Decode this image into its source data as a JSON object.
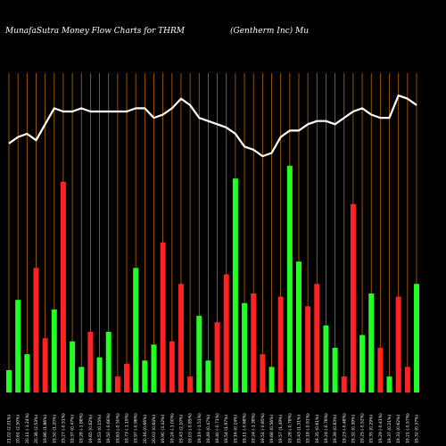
{
  "header": {
    "left": "MunafaSutra  Money Flow  Charts for THRM",
    "right": "(Gentherm Inc) Mu"
  },
  "chart_data": {
    "type": "bar",
    "title": "MunafaSutra  Money Flow  Charts for THRM",
    "subtitle": "(Gentherm Inc) Mu",
    "ylim": [
      0,
      100
    ],
    "categories": [
      "21.02 (2.01%)",
      "20.61 (2.50%)",
      "20.11 (-1.24%)",
      "20.36 (2.53%)",
      "19.86 (1.86%)",
      "19.50 (1.20%)",
      "19.27 (-0.51%)",
      "19.37 (0.47%)",
      "19.28 (-1.88%)",
      "19.65 (0.62%)",
      "19.53 (0.15%)",
      "19.50 (-0.66%)",
      "19.63 (-0.50%)",
      "19.73 (-1.19%)",
      "19.97 (-0.96%)",
      "20.16 (0.66%)",
      "20.03 (0.64%)",
      "19.90 (3.42%)",
      "19.24 (-1.00%)",
      "19.43 (2.10%)",
      "19.03 (-0.85%)",
      "19.19 (-1.51%)",
      "19.49 (0.47%)",
      "19.40 (-0.71%)",
      "19.54 (1.97%)",
      "19.16 (0.24%)",
      "19.11 (-0.68%)",
      "19.24 (-1.38%)",
      "19.51 (-0.85%)",
      "19.68 (0.56%)",
      "19.57 (1.49%)",
      "19.28 (-0.78%)",
      "19.43 (1.31%)",
      "19.18 (-0.91%)",
      "19.35 (0.61%)",
      "19.24 (-0.78%)",
      "19.39 (0.83%)",
      "19.23 (-0.48%)",
      "19.32 (0.39%)",
      "19.25 (-0.52%)",
      "19.35 (0.29%)",
      "19.29 (-0.41%)",
      "19.37 (0.21%)",
      "19.33 (0.62%)",
      "19.21 (-0.57%)",
      "19.32 (0.37%)"
    ],
    "series": [
      {
        "colors": [
          "green",
          "green",
          "green",
          "red",
          "red",
          "green",
          "red",
          "green",
          "green",
          "red",
          "green",
          "green",
          "red",
          "red",
          "green",
          "green",
          "green",
          "red",
          "red",
          "red",
          "red",
          "green",
          "green",
          "red",
          "red",
          "green",
          "green",
          "red",
          "red",
          "green",
          "red",
          "green",
          "green",
          "red",
          "red",
          "green",
          "green",
          "red",
          "red",
          "green",
          "green",
          "red",
          "green",
          "red",
          "red",
          "green"
        ],
        "values": [
          7,
          29,
          12,
          39,
          17,
          26,
          66,
          16,
          8,
          19,
          11,
          19,
          5,
          9,
          39,
          10,
          15,
          47,
          16,
          34,
          5,
          24,
          10,
          22,
          37,
          67,
          28,
          31,
          12,
          8,
          30,
          71,
          41,
          27,
          34,
          21,
          14,
          5,
          59,
          18,
          31,
          14,
          5,
          30,
          8,
          34
        ]
      },
      {
        "values": [
          78,
          80,
          81,
          79,
          84,
          89,
          88,
          88,
          89,
          88,
          88,
          88,
          88,
          88,
          89,
          89,
          86,
          87,
          89,
          92,
          90,
          86,
          85,
          84,
          83,
          81,
          77,
          76,
          74,
          75,
          80,
          82,
          82,
          84,
          85,
          85,
          84,
          86,
          88,
          89,
          87,
          86,
          86,
          93,
          92,
          90
        ]
      }
    ]
  }
}
